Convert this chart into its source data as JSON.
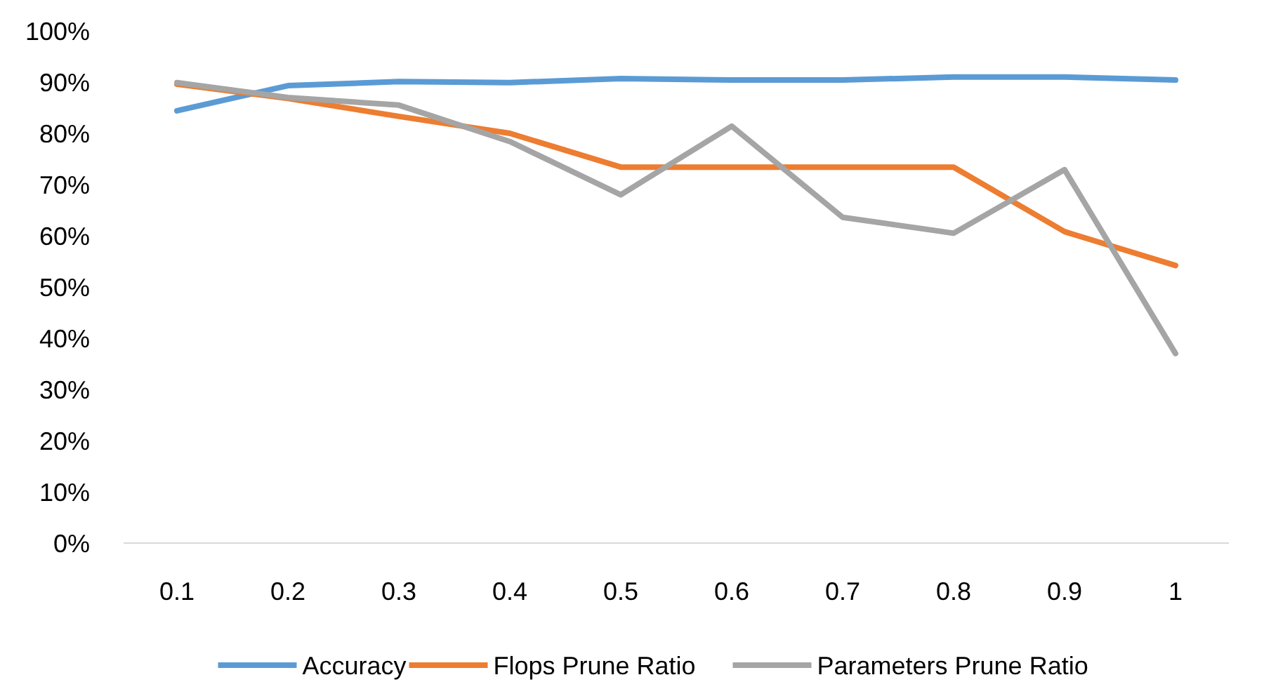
{
  "chart_data": {
    "type": "line",
    "categories": [
      "0.1",
      "0.2",
      "0.3",
      "0.4",
      "0.5",
      "0.6",
      "0.7",
      "0.8",
      "0.9",
      "1"
    ],
    "series": [
      {
        "name": "Accuracy",
        "color": "#5b9bd5",
        "values": [
          84.4,
          89.3,
          90.1,
          89.9,
          90.7,
          90.4,
          90.4,
          91,
          91,
          90.4
        ]
      },
      {
        "name": "Flops Prune Ratio",
        "color": "#ed7d31",
        "values": [
          89.6,
          86.8,
          83.3,
          80,
          73.4,
          73.4,
          73.4,
          73.4,
          60.8,
          54.2
        ]
      },
      {
        "name": "Parameters Prune Ratio",
        "color": "#a5a5a5",
        "values": [
          89.9,
          87,
          85.5,
          78.4,
          68,
          81.4,
          63.6,
          60.5,
          72.9,
          37
        ]
      }
    ],
    "ylim": [
      0,
      100
    ],
    "yticks": [
      {
        "value": 0,
        "label": "0%"
      },
      {
        "value": 10,
        "label": "10%"
      },
      {
        "value": 20,
        "label": "20%"
      },
      {
        "value": 30,
        "label": "30%"
      },
      {
        "value": 40,
        "label": "40%"
      },
      {
        "value": 50,
        "label": "50%"
      },
      {
        "value": 60,
        "label": "60%"
      },
      {
        "value": 70,
        "label": "70%"
      },
      {
        "value": 80,
        "label": "80%"
      },
      {
        "value": 90,
        "label": "90%"
      },
      {
        "value": 100,
        "label": "100%"
      }
    ],
    "grid": false,
    "legend": "bottom",
    "marker": "none",
    "line_style": "solid"
  }
}
